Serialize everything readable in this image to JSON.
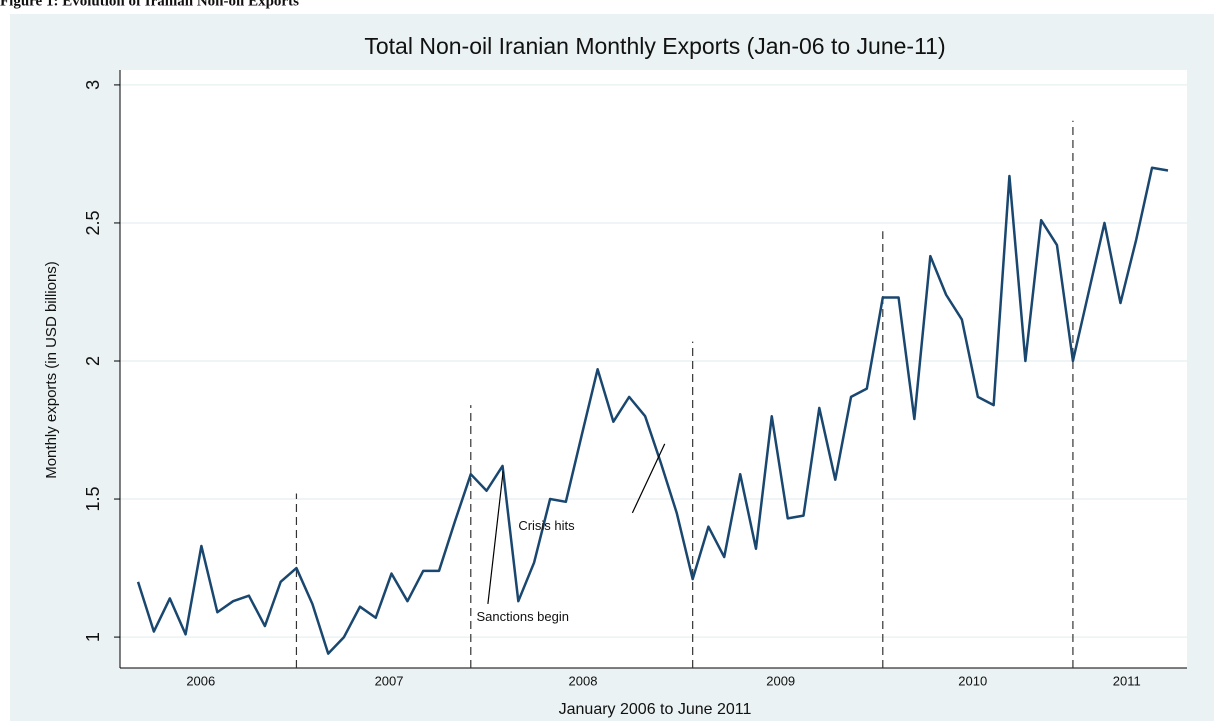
{
  "caption": "Figure 1: Evolution of Iranian Non-oil Exports",
  "chart_data": {
    "type": "line",
    "title": "Total Non-oil Iranian Monthly Exports (Jan-06 to June-11)",
    "x_label": "January 2006 to June 2011",
    "y_label": "Monthly exports (in USD billions)",
    "x": [
      2006.0,
      2006.083,
      2006.167,
      2006.25,
      2006.333,
      2006.417,
      2006.5,
      2006.583,
      2006.667,
      2006.75,
      2006.833,
      2006.917,
      2007.0,
      2007.083,
      2007.167,
      2007.25,
      2007.333,
      2007.417,
      2007.5,
      2007.583,
      2007.667,
      2007.75,
      2007.833,
      2007.917,
      2008.0,
      2008.083,
      2008.167,
      2008.25,
      2008.333,
      2008.417,
      2008.5,
      2008.583,
      2008.667,
      2008.75,
      2008.833,
      2008.917,
      2009.0,
      2009.083,
      2009.167,
      2009.25,
      2009.333,
      2009.417,
      2009.5,
      2009.583,
      2009.667,
      2009.75,
      2009.833,
      2009.917,
      2010.0,
      2010.083,
      2010.167,
      2010.25,
      2010.333,
      2010.417,
      2010.5,
      2010.583,
      2010.667,
      2010.75,
      2010.833,
      2010.917,
      2011.0,
      2011.083,
      2011.167,
      2011.25,
      2011.333,
      2011.417
    ],
    "series": [
      {
        "name": "Monthly exports",
        "color": "#1a476f",
        "values": [
          1.2,
          1.02,
          1.14,
          1.01,
          1.33,
          1.09,
          1.13,
          1.15,
          1.04,
          1.2,
          1.25,
          1.12,
          0.94,
          1.0,
          1.11,
          1.07,
          1.23,
          1.13,
          1.24,
          1.24,
          1.42,
          1.59,
          1.53,
          1.62,
          1.13,
          1.27,
          1.5,
          1.49,
          1.73,
          1.97,
          1.78,
          1.87,
          1.8,
          1.63,
          1.45,
          1.21,
          1.4,
          1.29,
          1.59,
          1.32,
          1.8,
          1.43,
          1.44,
          1.83,
          1.57,
          1.87,
          1.9,
          2.23,
          2.23,
          1.79,
          2.38,
          2.24,
          2.15,
          1.87,
          1.84,
          2.67,
          2.0,
          2.51,
          2.42,
          2.0,
          2.25,
          2.5,
          2.21,
          2.44,
          2.7,
          2.69
        ]
      }
    ],
    "xlim": [
      2005.905,
      2011.517
    ],
    "ylim": [
      0.888,
      3.054
    ],
    "yticks": [
      1,
      1.5,
      2,
      2.5,
      3
    ],
    "xticks": [
      {
        "value": 2006.33,
        "label": "2006"
      },
      {
        "value": 2007.32,
        "label": "2007"
      },
      {
        "value": 2008.34,
        "label": "2008"
      },
      {
        "value": 2009.38,
        "label": "2009"
      },
      {
        "value": 2010.39,
        "label": "2010"
      },
      {
        "value": 2011.2,
        "label": "2011"
      }
    ],
    "grid": true,
    "vlines": [
      {
        "x": 2006.833,
        "top": 1.52
      },
      {
        "x": 2007.75,
        "top": 1.84
      },
      {
        "x": 2008.917,
        "top": 2.07
      },
      {
        "x": 2009.917,
        "top": 2.47
      },
      {
        "x": 2010.917,
        "top": 2.87
      }
    ],
    "annotations": [
      {
        "text": "Sanctions begin",
        "x": 2007.78,
        "y": 1.07,
        "from": [
          2007.84,
          1.12
        ],
        "to": [
          2007.92,
          1.6
        ]
      },
      {
        "text": "Crisis hits",
        "x": 2008.0,
        "y": 1.4,
        "from": [
          2008.6,
          1.45
        ],
        "to": [
          2008.77,
          1.7
        ]
      }
    ]
  }
}
